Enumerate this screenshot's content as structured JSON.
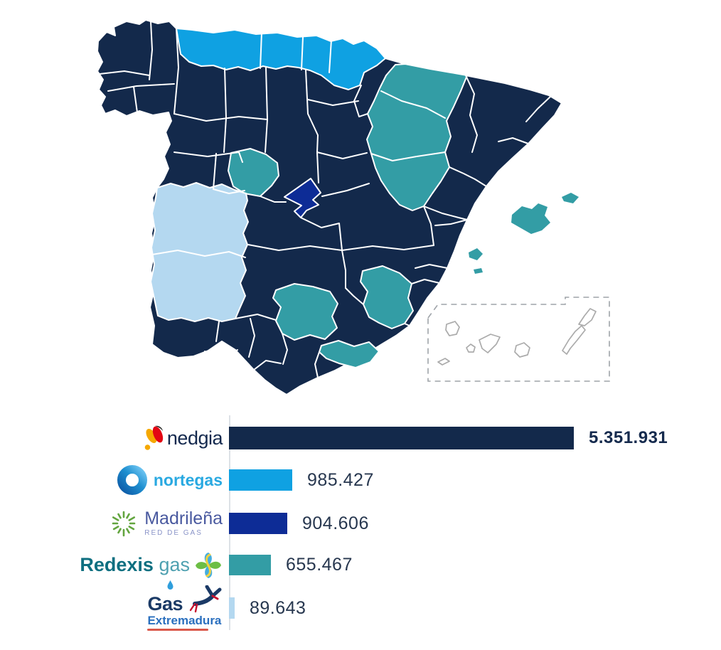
{
  "chart_data": {
    "type": "bar",
    "orientation": "horizontal",
    "title": "",
    "categories": [
      "nedgia",
      "nortegas",
      "Madrileña Red de Gas",
      "Redexis gas",
      "Gas Extremadura"
    ],
    "values": [
      5351931,
      985427,
      904606,
      655467,
      89643
    ],
    "value_labels": [
      "5.351.931",
      "985.427",
      "904.606",
      "655.467",
      "89.643"
    ],
    "colors": [
      "#13294b",
      "#0fa1e2",
      "#0d2c96",
      "#339da5",
      "#b4d8f0"
    ],
    "xlim": [
      0,
      5351931
    ],
    "gridlines": false,
    "legend_position": "left-logos"
  },
  "companies": {
    "nedgia": {
      "color": "#13294b",
      "logo_text": "nedgia"
    },
    "nortegas": {
      "color": "#0fa1e2",
      "logo_text": "nortegas"
    },
    "madrilena": {
      "color": "#0d2c96",
      "logo_line1": "Madrileña",
      "logo_line2": "RED DE GAS"
    },
    "redexis": {
      "color": "#339da5",
      "logo_word1": "Redexis",
      "logo_word2": "gas"
    },
    "gas_extremadura": {
      "color": "#b4d8f0",
      "logo_line1": "Gas",
      "logo_line2": "Extremadura"
    }
  },
  "map": {
    "border_color": "#ffffff",
    "no_data_outline_color": "#ababab",
    "canary_box_color": "#9ea3a8"
  }
}
